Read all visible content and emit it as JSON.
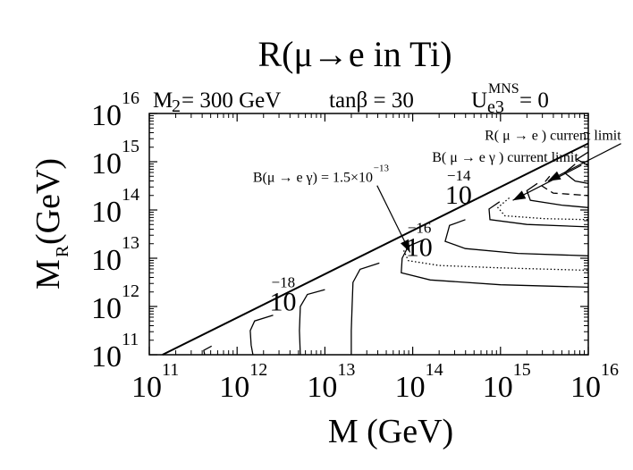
{
  "chart_data": {
    "type": "contour",
    "title": "R(μ→e in Ti)",
    "params": {
      "m2_label": "M",
      "m2_sub": "2",
      "m2_value": " = 300 GeV",
      "tanb": "tanβ = 30",
      "u_label": "U",
      "u_sup": "MNS",
      "u_sub": "e3",
      "u_value": " = 0"
    },
    "xlabel": "M (GeV)",
    "ylabel_main": "M",
    "ylabel_sub": "R",
    "ylabel_unit": " (GeV)",
    "x_log_range": [
      11,
      16
    ],
    "y_log_range": [
      11,
      16
    ],
    "scale": "log-log",
    "x_ticks": [
      {
        "base": "10",
        "exp": "11",
        "value": 11
      },
      {
        "base": "10",
        "exp": "12",
        "value": 12
      },
      {
        "base": "10",
        "exp": "13",
        "value": 13
      },
      {
        "base": "10",
        "exp": "14",
        "value": 14
      },
      {
        "base": "10",
        "exp": "15",
        "value": 15
      },
      {
        "base": "10",
        "exp": "16",
        "value": 16
      }
    ],
    "y_ticks": [
      {
        "base": "10",
        "exp": "11",
        "value": 11
      },
      {
        "base": "10",
        "exp": "12",
        "value": 12
      },
      {
        "base": "10",
        "exp": "13",
        "value": 13
      },
      {
        "base": "10",
        "exp": "14",
        "value": 14
      },
      {
        "base": "10",
        "exp": "15",
        "value": 15
      },
      {
        "base": "10",
        "exp": "16",
        "value": 16
      }
    ],
    "diagonal_boundary": {
      "from": [
        11.15,
        11
      ],
      "to": [
        16,
        15.38
      ]
    },
    "contour_labels": [
      {
        "base": "10",
        "exp": "−18",
        "at": [
          12.37,
          11.92
        ]
      },
      {
        "base": "10",
        "exp": "−16",
        "at": [
          13.92,
          13.05
        ]
      },
      {
        "base": "10",
        "exp": "−14",
        "at": [
          14.37,
          14.13
        ]
      }
    ],
    "solid_contours": [
      {
        "points": [
          [
            11.71,
            11.18
          ],
          [
            11.62,
            11.09
          ],
          [
            11.63,
            11.0
          ]
        ]
      },
      {
        "points": [
          [
            12.41,
            11.82
          ],
          [
            12.2,
            11.7
          ],
          [
            12.15,
            11.5
          ],
          [
            12.16,
            11.2
          ],
          [
            12.18,
            11.0
          ]
        ]
      },
      {
        "points": [
          [
            13.0,
            12.35
          ],
          [
            12.8,
            12.25
          ],
          [
            12.72,
            12.0
          ],
          [
            12.71,
            11.5
          ],
          [
            12.72,
            11.0
          ]
        ]
      },
      {
        "points": [
          [
            13.62,
            12.9
          ],
          [
            13.4,
            12.77
          ],
          [
            13.32,
            12.5
          ],
          [
            13.31,
            12.0
          ],
          [
            13.3,
            11.5
          ],
          [
            13.3,
            11.0
          ]
        ]
      },
      {
        "points": [
          [
            14.12,
            13.38
          ],
          [
            13.95,
            13.25
          ],
          [
            13.88,
            13.0
          ],
          [
            13.87,
            12.7
          ],
          [
            14.2,
            12.55
          ],
          [
            15.0,
            12.45
          ],
          [
            16.0,
            12.4
          ]
        ]
      },
      {
        "points": [
          [
            14.6,
            13.8
          ],
          [
            14.42,
            13.68
          ],
          [
            14.37,
            13.35
          ],
          [
            14.6,
            13.2
          ],
          [
            15.2,
            13.1
          ],
          [
            16.0,
            13.05
          ]
        ]
      },
      {
        "points": [
          [
            14.99,
            14.17
          ],
          [
            14.87,
            14.02
          ],
          [
            14.88,
            13.8
          ],
          [
            15.3,
            13.7
          ],
          [
            16.0,
            13.65
          ]
        ]
      },
      {
        "points": [
          [
            15.42,
            14.55
          ],
          [
            15.3,
            14.4
          ],
          [
            15.34,
            14.2
          ],
          [
            15.7,
            14.1
          ],
          [
            16.0,
            14.05
          ]
        ]
      },
      {
        "points": [
          [
            15.85,
            14.95
          ],
          [
            15.73,
            14.77
          ],
          [
            15.85,
            14.6
          ],
          [
            16.0,
            14.55
          ]
        ]
      },
      {
        "points": [
          [
            16.0,
            15.2
          ],
          [
            15.87,
            15.05
          ],
          [
            16.0,
            14.92
          ]
        ]
      }
    ],
    "dotted_contours": [
      {
        "points": [
          [
            14.0,
            13.3
          ],
          [
            13.9,
            13.15
          ],
          [
            13.95,
            12.95
          ],
          [
            14.3,
            12.85
          ],
          [
            15.0,
            12.8
          ],
          [
            16.0,
            12.75
          ]
        ]
      },
      {
        "points": [
          [
            15.1,
            14.25
          ],
          [
            14.97,
            14.05
          ],
          [
            15.05,
            13.88
          ],
          [
            15.5,
            13.82
          ],
          [
            16.0,
            13.8
          ]
        ]
      }
    ],
    "dashed_contours": [
      {
        "points": [
          [
            15.56,
            14.7
          ],
          [
            15.47,
            14.5
          ],
          [
            15.6,
            14.35
          ],
          [
            16.0,
            14.3
          ]
        ]
      }
    ],
    "annotations": [
      {
        "text": "R( μ → e )  current limit",
        "label_at": [
          14.82,
          15.45
        ],
        "arrow_to": [
          15.54,
          14.6
        ]
      },
      {
        "text": "B( μ → e γ )  current limit",
        "label_at": [
          14.22,
          15.0
        ],
        "arrow_to": [
          15.14,
          14.2
        ]
      },
      {
        "text_main": "B(μ → e γ) = 1.5×10",
        "text_exp": "−13",
        "label_at": [
          12.18,
          14.58
        ],
        "arrow_to": [
          13.97,
          13.12
        ]
      }
    ]
  }
}
